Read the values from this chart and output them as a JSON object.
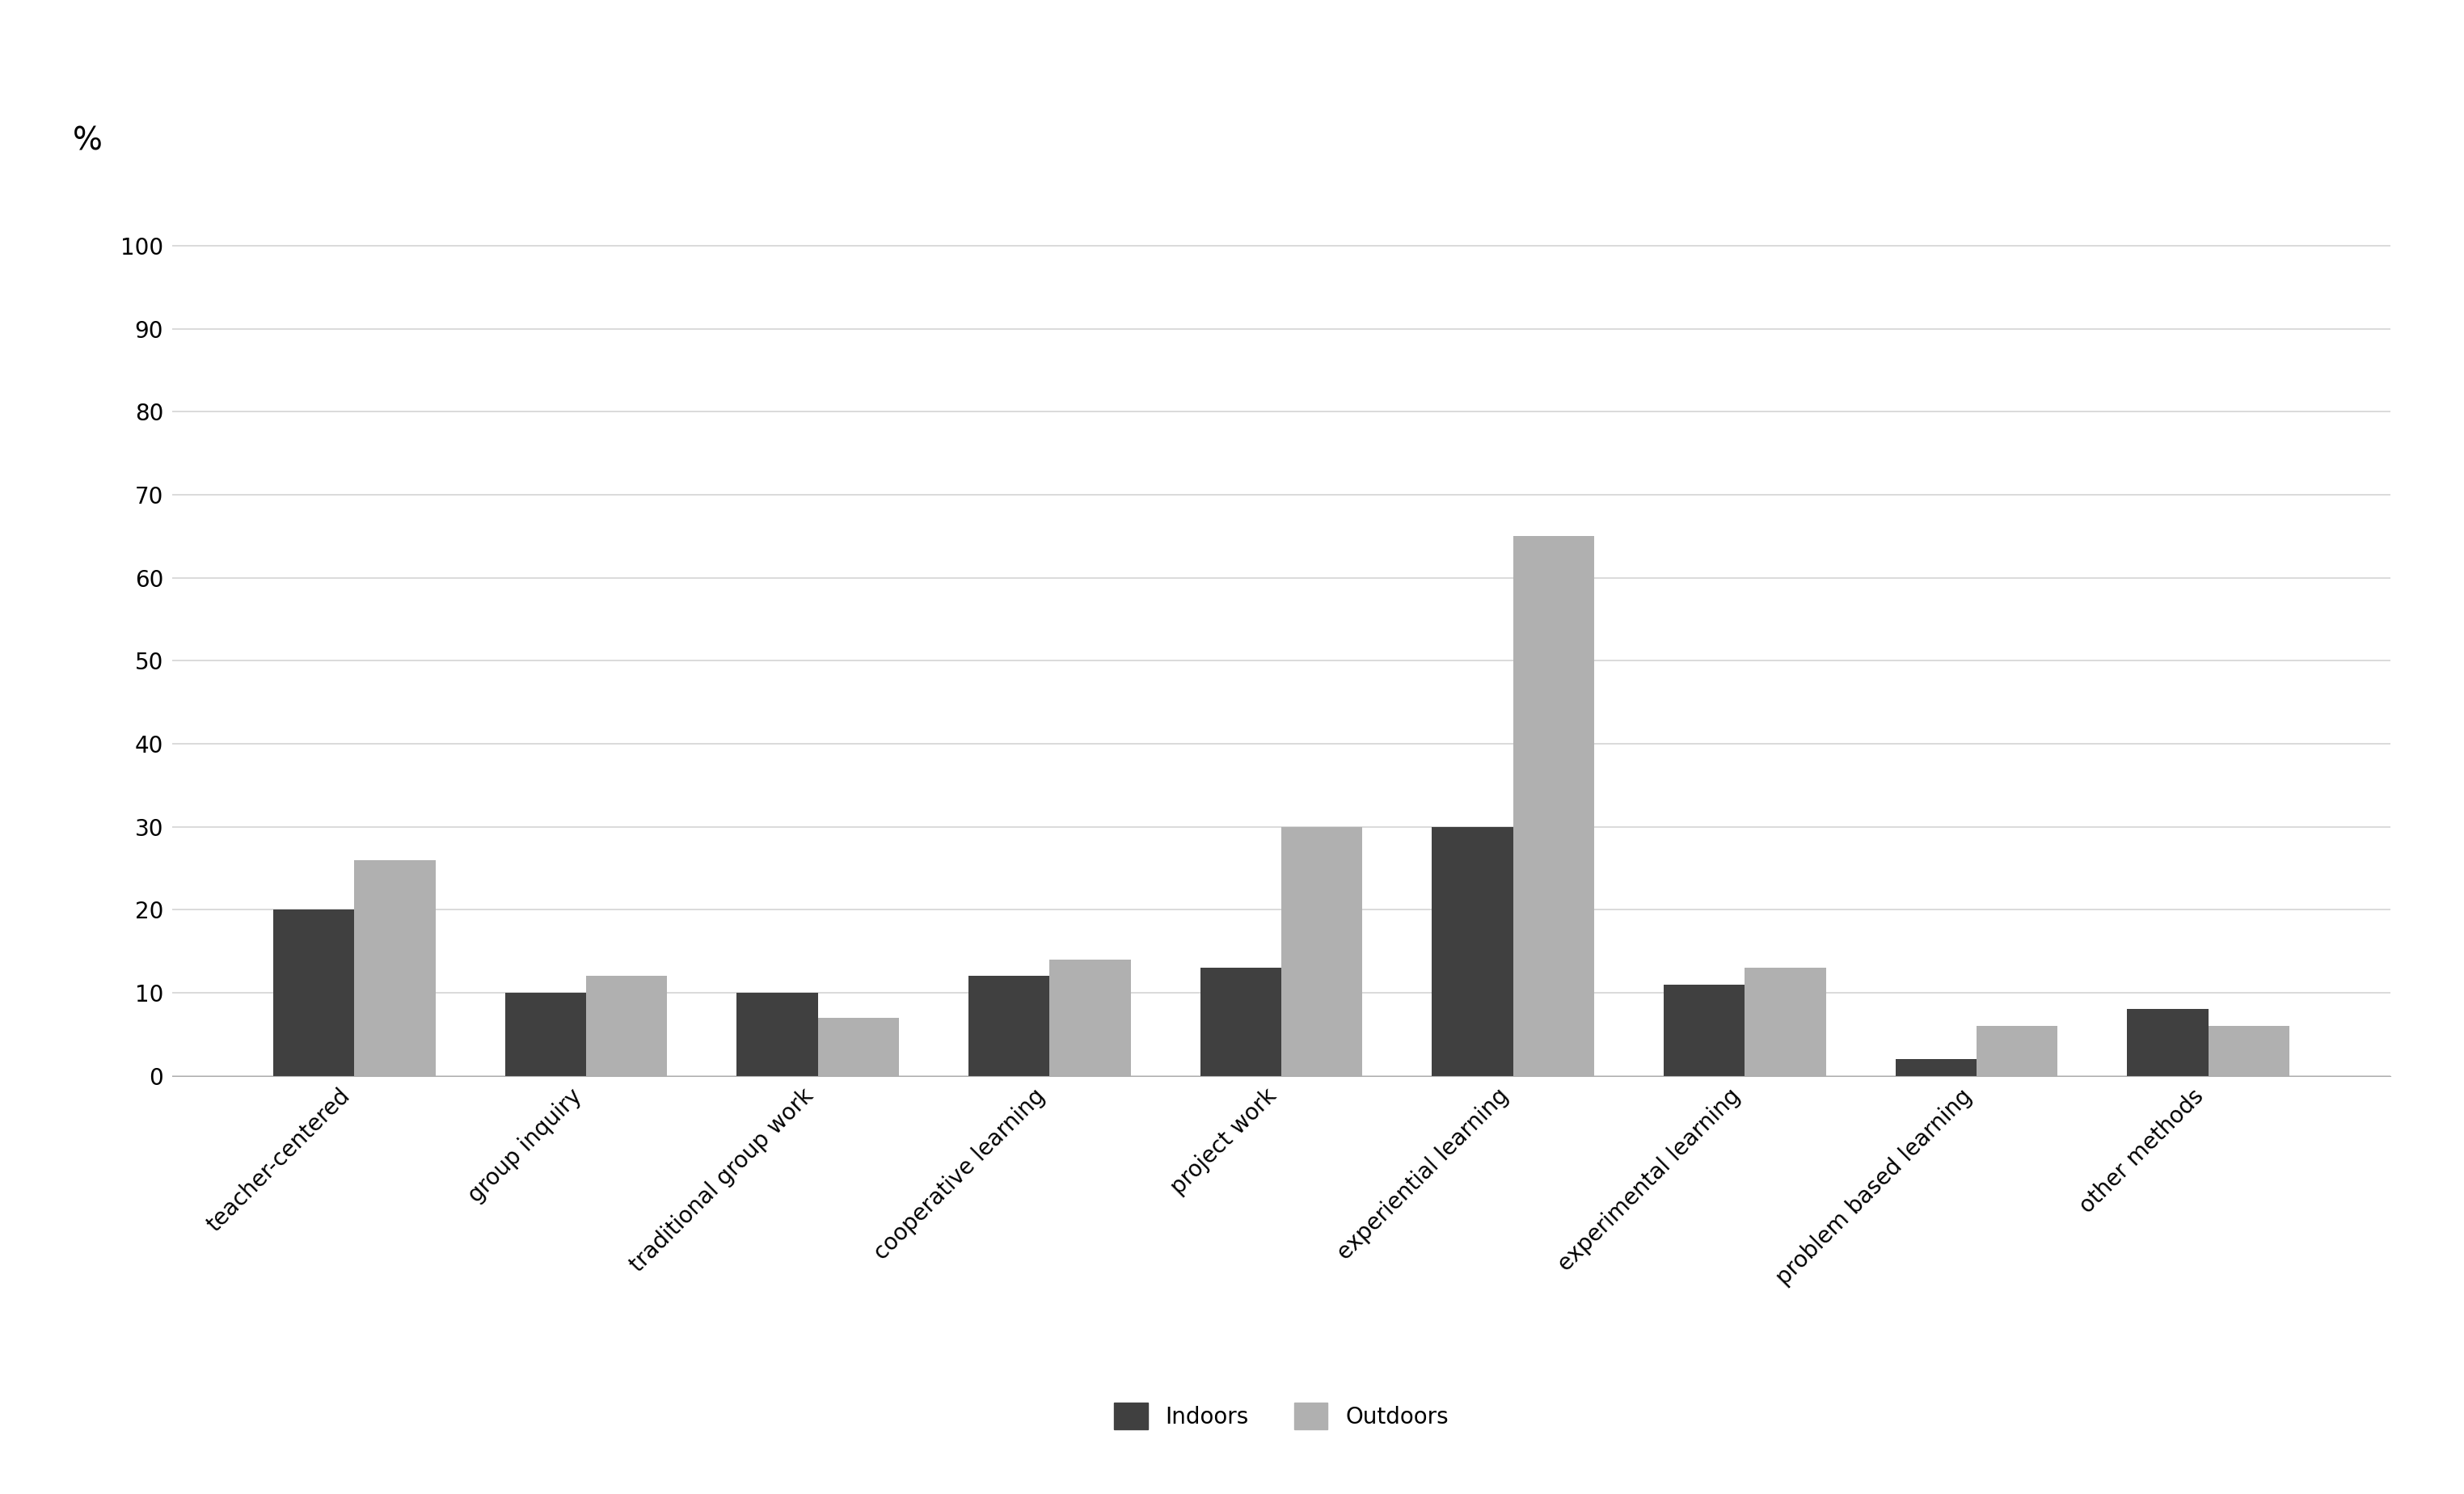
{
  "categories": [
    "teacher-centered",
    "group inquiry",
    "traditional group work",
    "cooperative learning",
    "project work",
    "experiential learning",
    "experimental learning",
    "problem based learning",
    "other methods"
  ],
  "indoors": [
    20,
    10,
    10,
    12,
    13,
    30,
    11,
    2,
    8
  ],
  "outdoors": [
    26,
    12,
    7,
    14,
    30,
    65,
    13,
    6,
    6
  ],
  "indoors_color": "#404040",
  "outdoors_color": "#b0b0b0",
  "percent_label": "%",
  "yticks": [
    0,
    10,
    20,
    30,
    40,
    50,
    60,
    70,
    80,
    90,
    100
  ],
  "ylim": [
    0,
    108
  ],
  "legend_labels": [
    "Indoors",
    "Outdoors"
  ],
  "bar_width": 0.35,
  "background_color": "#ffffff",
  "grid_color": "#d4d4d4",
  "percent_fontsize": 28,
  "tick_fontsize": 20,
  "legend_fontsize": 20
}
